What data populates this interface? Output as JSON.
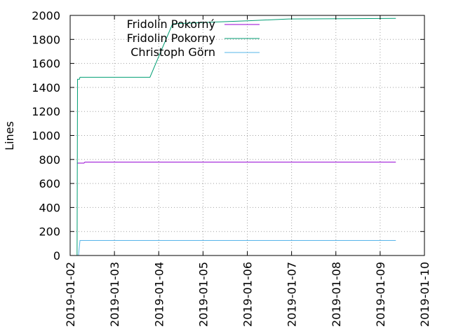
{
  "chart_data": {
    "type": "line",
    "title": "",
    "xlabel": "",
    "ylabel": "Lines",
    "x_type": "date",
    "xlim": [
      "2019-01-02T00:00",
      "2019-01-10T00:00"
    ],
    "ylim": [
      0,
      2000
    ],
    "y_ticks": [
      0,
      200,
      400,
      600,
      800,
      1000,
      1200,
      1400,
      1600,
      1800,
      2000
    ],
    "x_ticks": [
      "2019-01-02",
      "2019-01-03",
      "2019-01-04",
      "2019-01-05",
      "2019-01-06",
      "2019-01-07",
      "2019-01-08",
      "2019-01-09",
      "2019-01-10"
    ],
    "grid": true,
    "legend_position": "top-center",
    "series": [
      {
        "name": "Fridolín Pokorný",
        "color": "#9400d3",
        "points": [
          [
            "2019-01-02T03:45",
            770
          ],
          [
            "2019-01-02T07:30",
            770
          ],
          [
            "2019-01-02T08:00",
            778
          ],
          [
            "2019-01-09T08:30",
            778
          ]
        ]
      },
      {
        "name": "Fridolin Pokorny",
        "color": "#009e73",
        "points": [
          [
            "2019-01-02T03:45",
            0
          ],
          [
            "2019-01-02T04:00",
            1468
          ],
          [
            "2019-01-02T05:00",
            1468
          ],
          [
            "2019-01-02T05:20",
            1485
          ],
          [
            "2019-01-03T19:15",
            1485
          ],
          [
            "2019-01-04T07:30",
            1930
          ],
          [
            "2019-01-05T07:30",
            1945
          ],
          [
            "2019-01-06T00:00",
            1955
          ],
          [
            "2019-01-06T22:30",
            1970
          ],
          [
            "2019-01-09T08:30",
            1975
          ]
        ]
      },
      {
        "name": "Christoph Görn",
        "color": "#56b4e9",
        "points": [
          [
            "2019-01-02T04:30",
            0
          ],
          [
            "2019-01-02T05:20",
            125
          ],
          [
            "2019-01-09T08:30",
            125
          ]
        ]
      }
    ]
  }
}
